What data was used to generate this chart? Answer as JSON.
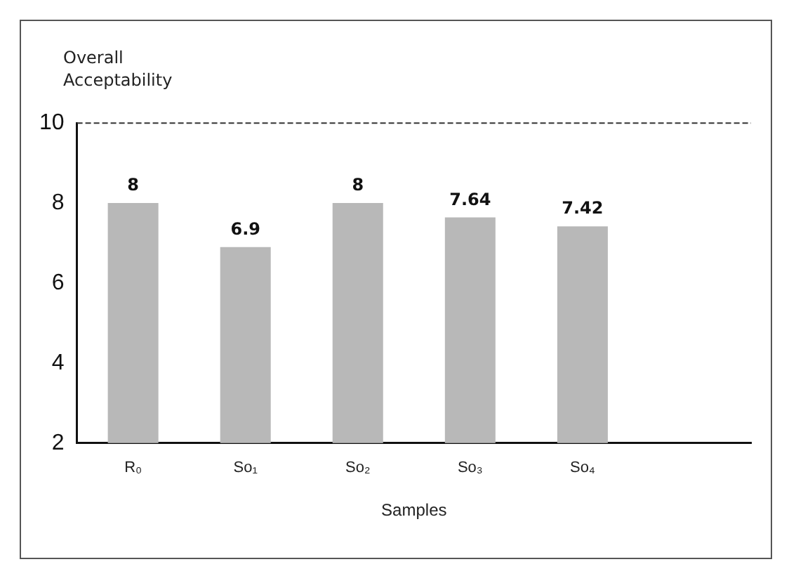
{
  "chart_data": {
    "type": "bar",
    "ylabel": "Overall Acceptability",
    "xlabel": "Samples",
    "categories": [
      "R₀",
      "So₁",
      "So₂",
      "So₃",
      "So₄",
      null
    ],
    "values": [
      8,
      6.9,
      8,
      7.64,
      7.42,
      null
    ],
    "color": "#b8b8b8",
    "ylim": [
      2,
      10
    ],
    "yticks": [
      2,
      4,
      6,
      8,
      10
    ],
    "grid": false,
    "legend": false,
    "data_labels": true
  }
}
